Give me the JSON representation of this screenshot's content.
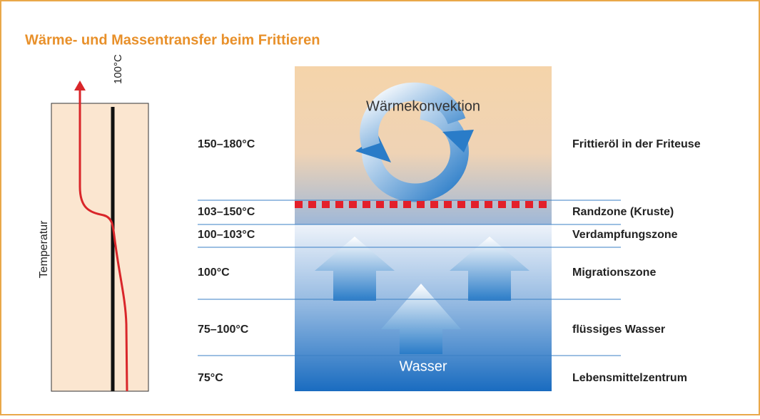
{
  "header": {
    "title": "Wärme- und Massentransfer beim Frittieren"
  },
  "profile": {
    "axis_label": "Temperatur",
    "reference_label": "100°C"
  },
  "diagram": {
    "convection_label": "Wärmekonvektion",
    "water_label": "Wasser"
  },
  "zones": [
    {
      "temperature": "150–180°C",
      "name": "Frittieröl in der Friteuse"
    },
    {
      "temperature": "103–150°C",
      "name": "Randzone (Kruste)"
    },
    {
      "temperature": "100–103°C",
      "name": "Verdampfungszone"
    },
    {
      "temperature": "100°C",
      "name": "Migrationszone"
    },
    {
      "temperature": "75–100°C",
      "name": "flüssiges Wasser"
    },
    {
      "temperature": "75°C",
      "name": "Lebensmittelzentrum"
    }
  ]
}
